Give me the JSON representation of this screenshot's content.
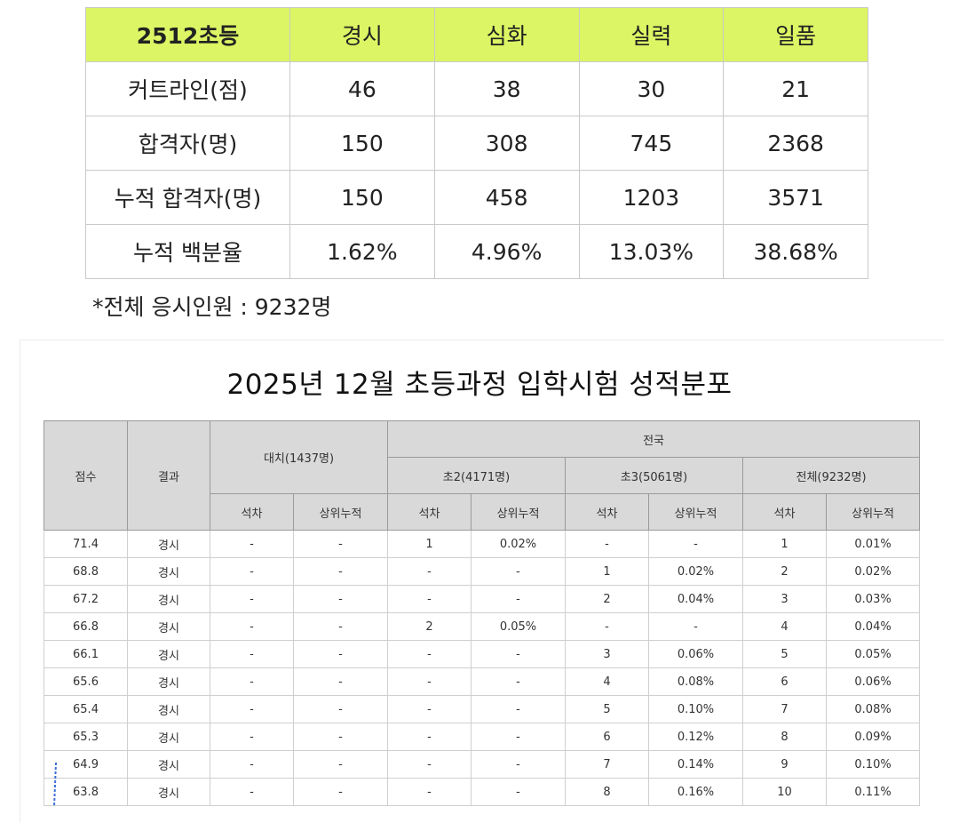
{
  "summary": {
    "header": [
      "2512초등",
      "경시",
      "심화",
      "실력",
      "일품"
    ],
    "rows": [
      [
        "커트라인(점)",
        "46",
        "38",
        "30",
        "21"
      ],
      [
        "합격자(명)",
        "150",
        "308",
        "745",
        "2368"
      ],
      [
        "누적 합격자(명)",
        "150",
        "458",
        "1203",
        "3571"
      ],
      [
        "누적 백분율",
        "1.62%",
        "4.96%",
        "13.03%",
        "38.68%"
      ]
    ],
    "note": "*전체 응시인원 : 9232명"
  },
  "distribution": {
    "title": "2025년 12월 초등과정 입학시험 성적분포",
    "headers": {
      "score": "점수",
      "result": "결과",
      "daechi": "대치(1437명)",
      "national": "전국",
      "cho2": "초2(4171명)",
      "cho3": "초3(5061명)",
      "total": "전체(9232명)",
      "rank": "석차",
      "cumulative": "상위누적"
    },
    "rows": [
      [
        "71.4",
        "경시",
        "-",
        "-",
        "1",
        "0.02%",
        "-",
        "-",
        "1",
        "0.01%"
      ],
      [
        "68.8",
        "경시",
        "-",
        "-",
        "-",
        "-",
        "1",
        "0.02%",
        "2",
        "0.02%"
      ],
      [
        "67.2",
        "경시",
        "-",
        "-",
        "-",
        "-",
        "2",
        "0.04%",
        "3",
        "0.03%"
      ],
      [
        "66.8",
        "경시",
        "-",
        "-",
        "2",
        "0.05%",
        "-",
        "-",
        "4",
        "0.04%"
      ],
      [
        "66.1",
        "경시",
        "-",
        "-",
        "-",
        "-",
        "3",
        "0.06%",
        "5",
        "0.05%"
      ],
      [
        "65.6",
        "경시",
        "-",
        "-",
        "-",
        "-",
        "4",
        "0.08%",
        "6",
        "0.06%"
      ],
      [
        "65.4",
        "경시",
        "-",
        "-",
        "-",
        "-",
        "5",
        "0.10%",
        "7",
        "0.08%"
      ],
      [
        "65.3",
        "경시",
        "-",
        "-",
        "-",
        "-",
        "6",
        "0.12%",
        "8",
        "0.09%"
      ],
      [
        "64.9",
        "경시",
        "-",
        "-",
        "-",
        "-",
        "7",
        "0.14%",
        "9",
        "0.10%"
      ],
      [
        "63.8",
        "경시",
        "-",
        "-",
        "-",
        "-",
        "8",
        "0.16%",
        "10",
        "0.11%"
      ]
    ]
  },
  "colors": {
    "summary_header_bg": "#dcf564",
    "dist_header_bg": "#d9d9d9",
    "pen_mark": "#3a6fd8"
  }
}
